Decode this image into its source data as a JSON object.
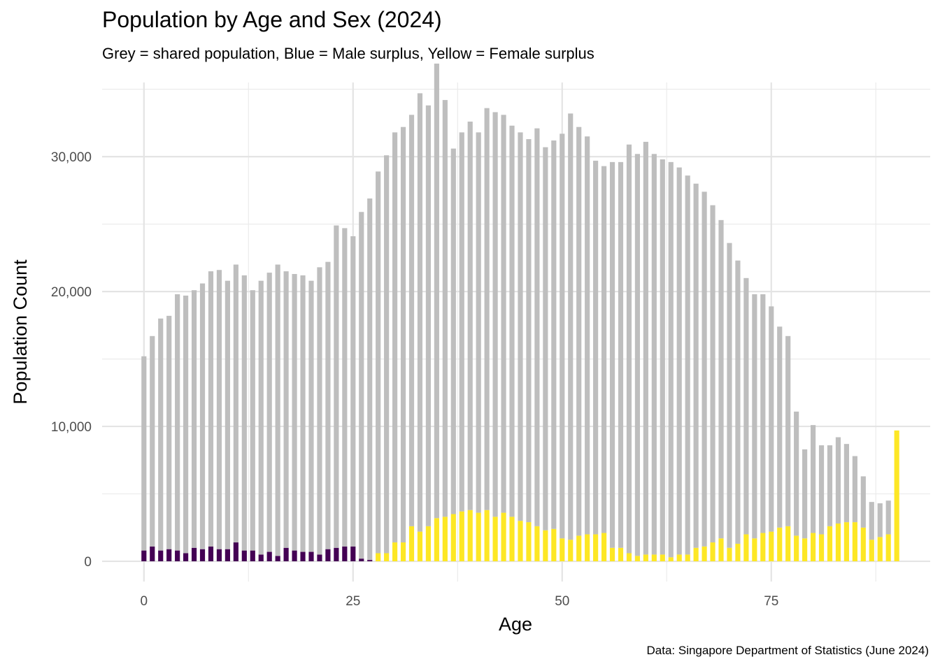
{
  "chart_data": {
    "type": "bar",
    "title": "Population by Age and Sex (2024)",
    "subtitle": "Grey = shared population, Blue = Male surplus, Yellow = Female surplus",
    "caption": "Data: Singapore Department of Statistics (June 2024)",
    "xlabel": "Age",
    "ylabel": "Population Count",
    "xlim": [
      -5,
      94
    ],
    "ylim": [
      -1500,
      35500
    ],
    "x_ticks": [
      0,
      25,
      50,
      75
    ],
    "x_tick_labels": [
      "0",
      "25",
      "50",
      "75"
    ],
    "y_ticks": [
      0,
      10000,
      20000,
      30000
    ],
    "y_tick_labels": [
      "0",
      "10,000",
      "20,000",
      "30,000"
    ],
    "grid": true,
    "stacked": true,
    "categories": [
      0,
      1,
      2,
      3,
      4,
      5,
      6,
      7,
      8,
      9,
      10,
      11,
      12,
      13,
      14,
      15,
      16,
      17,
      18,
      19,
      20,
      21,
      22,
      23,
      24,
      25,
      26,
      27,
      28,
      29,
      30,
      31,
      32,
      33,
      34,
      35,
      36,
      37,
      38,
      39,
      40,
      41,
      42,
      43,
      44,
      45,
      46,
      47,
      48,
      49,
      50,
      51,
      52,
      53,
      54,
      55,
      56,
      57,
      58,
      59,
      60,
      61,
      62,
      63,
      64,
      65,
      66,
      67,
      68,
      69,
      70,
      71,
      72,
      73,
      74,
      75,
      76,
      77,
      78,
      79,
      80,
      81,
      82,
      83,
      84,
      85,
      86,
      87,
      88,
      89,
      90
    ],
    "series": [
      {
        "name": "Shared population",
        "color": "#bebebe",
        "values": [
          14400,
          15600,
          17200,
          17300,
          19000,
          19100,
          19100,
          19700,
          20400,
          20700,
          19900,
          20600,
          20400,
          19300,
          20300,
          20700,
          21600,
          20500,
          20500,
          20500,
          20100,
          21300,
          21300,
          23900,
          23600,
          23000,
          25700,
          26800,
          28300,
          29500,
          30400,
          30800,
          30500,
          32500,
          31200,
          33700,
          30900,
          27100,
          28100,
          28800,
          28200,
          29800,
          30000,
          29500,
          29000,
          28800,
          28400,
          29500,
          28400,
          28800,
          30000,
          31600,
          30300,
          29500,
          27700,
          27200,
          28600,
          28600,
          30300,
          29800,
          30600,
          29700,
          29300,
          29300,
          28700,
          28100,
          27000,
          26300,
          25000,
          23600,
          22600,
          21000,
          19000,
          18100,
          17700,
          16700,
          14900,
          14100,
          9200,
          6600,
          8000,
          6600,
          6000,
          6400,
          5800,
          4900,
          3800,
          2800,
          2500,
          2500,
          0
        ]
      },
      {
        "name": "Male surplus",
        "color": "#440154",
        "values": [
          800,
          1100,
          800,
          900,
          800,
          600,
          1000,
          900,
          1100,
          900,
          900,
          1400,
          800,
          800,
          500,
          700,
          400,
          1000,
          800,
          700,
          700,
          500,
          900,
          1000,
          1100,
          1100,
          200,
          100,
          0,
          0,
          0,
          0,
          0,
          0,
          0,
          0,
          0,
          0,
          0,
          0,
          0,
          0,
          0,
          0,
          0,
          0,
          0,
          0,
          0,
          0,
          0,
          0,
          0,
          0,
          0,
          0,
          0,
          0,
          0,
          0,
          0,
          0,
          0,
          0,
          0,
          0,
          0,
          0,
          0,
          0,
          0,
          0,
          0,
          0,
          0,
          0,
          0,
          0,
          0,
          0,
          0,
          0,
          0,
          0,
          0,
          0,
          0,
          0,
          0,
          0,
          0
        ]
      },
      {
        "name": "Female surplus",
        "color": "#fde725",
        "values": [
          0,
          0,
          0,
          0,
          0,
          0,
          0,
          0,
          0,
          0,
          0,
          0,
          0,
          0,
          0,
          0,
          0,
          0,
          0,
          0,
          0,
          0,
          0,
          0,
          0,
          0,
          0,
          0,
          600,
          600,
          1400,
          1400,
          2600,
          2200,
          2600,
          3200,
          3300,
          3500,
          3700,
          3800,
          3600,
          3800,
          3300,
          3600,
          3300,
          3000,
          2900,
          2600,
          2300,
          2400,
          1700,
          1600,
          1900,
          2000,
          2000,
          2100,
          1000,
          1000,
          600,
          400,
          500,
          500,
          500,
          300,
          500,
          500,
          1000,
          1100,
          1400,
          1700,
          1000,
          1300,
          2000,
          1700,
          2100,
          2200,
          2500,
          2600,
          1900,
          1700,
          2100,
          2000,
          2600,
          2800,
          2900,
          2900,
          2500,
          1600,
          1800,
          2000,
          9700
        ]
      }
    ]
  }
}
